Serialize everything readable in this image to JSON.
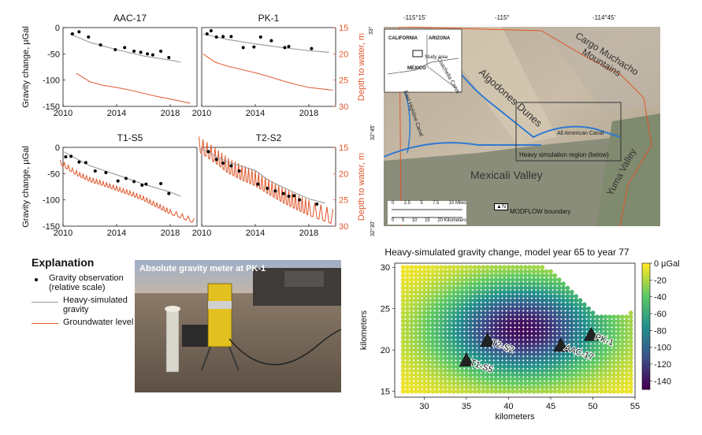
{
  "series_chart": {
    "panels": [
      {
        "title": "AAC-17",
        "x_ticks": [
          "2010",
          "2014",
          "2018"
        ],
        "y_ticks": [
          "0",
          "-50",
          "-100",
          "-150"
        ],
        "y2_ticks": [
          "15",
          "20",
          "25",
          "30"
        ],
        "obs": [
          [
            2010.7,
            -12
          ],
          [
            2011.2,
            -8
          ],
          [
            2011.9,
            -18
          ],
          [
            2012.8,
            -33
          ],
          [
            2013.9,
            -42
          ],
          [
            2014.6,
            -38
          ],
          [
            2015.3,
            -45
          ],
          [
            2015.8,
            -47
          ],
          [
            2016.3,
            -50
          ],
          [
            2016.7,
            -52
          ],
          [
            2017.3,
            -45
          ],
          [
            2017.9,
            -57
          ]
        ],
        "sim": [
          [
            2010.5,
            -12
          ],
          [
            2012,
            -28
          ],
          [
            2014,
            -42
          ],
          [
            2016,
            -54
          ],
          [
            2018,
            -62
          ],
          [
            2018.8,
            -66
          ]
        ],
        "gw": [
          [
            2011,
            23.7
          ],
          [
            2012,
            25.3
          ],
          [
            2013,
            26.0
          ],
          [
            2014,
            26.4
          ],
          [
            2015,
            26.9
          ],
          [
            2016,
            27.5
          ],
          [
            2017,
            28.1
          ],
          [
            2018,
            28.6
          ],
          [
            2019.5,
            29.4
          ]
        ]
      },
      {
        "title": "PK-1",
        "x_ticks": [
          "2010",
          "2014",
          "2018"
        ],
        "y_ticks": [
          "0",
          "-50",
          "-100",
          "-150"
        ],
        "y2_ticks": [
          "15",
          "20",
          "25",
          "30"
        ],
        "obs": [
          [
            2010.4,
            -12
          ],
          [
            2010.7,
            -6
          ],
          [
            2011.1,
            -18
          ],
          [
            2011.6,
            -17
          ],
          [
            2012.2,
            -17
          ],
          [
            2013.1,
            -38
          ],
          [
            2013.9,
            -37
          ],
          [
            2014.4,
            -18
          ],
          [
            2015.2,
            -25
          ],
          [
            2016.2,
            -38
          ],
          [
            2016.5,
            -36
          ],
          [
            2018.2,
            -40
          ]
        ],
        "sim": [
          [
            2010.1,
            -12
          ],
          [
            2012,
            -23
          ],
          [
            2014,
            -31
          ],
          [
            2016,
            -38
          ],
          [
            2018,
            -44
          ],
          [
            2019.5,
            -47
          ]
        ],
        "gw": [
          [
            2010.1,
            20.0
          ],
          [
            2011,
            21.6
          ],
          [
            2012,
            22.4
          ],
          [
            2013,
            23.0
          ],
          [
            2014,
            23.6
          ],
          [
            2015,
            24.3
          ],
          [
            2016,
            25.1
          ],
          [
            2017,
            25.8
          ],
          [
            2018,
            26.4
          ],
          [
            2019.8,
            26.9
          ]
        ]
      },
      {
        "title": "T1-S5",
        "x_ticks": [
          "2010",
          "2014",
          "2018"
        ],
        "y_ticks": [
          "0",
          "-50",
          "-100",
          "-150"
        ],
        "y2_ticks": [
          "15",
          "20",
          "25",
          "30"
        ],
        "obs": [
          [
            2010.2,
            -18
          ],
          [
            2010.6,
            -17
          ],
          [
            2011.2,
            -28
          ],
          [
            2011.7,
            -29
          ],
          [
            2012.4,
            -45
          ],
          [
            2013.2,
            -48
          ],
          [
            2014.1,
            -64
          ],
          [
            2014.7,
            -59
          ],
          [
            2015.3,
            -65
          ],
          [
            2015.9,
            -72
          ],
          [
            2016.2,
            -70
          ],
          [
            2017.3,
            -69
          ],
          [
            2017.9,
            -88
          ]
        ],
        "sim": [
          [
            2010,
            -8
          ],
          [
            2012,
            -35
          ],
          [
            2014,
            -52
          ],
          [
            2016,
            -70
          ],
          [
            2018,
            -85
          ],
          [
            2018.8,
            -93
          ]
        ],
        "gw": [
          [
            2009.8,
            18.2
          ],
          [
            2011,
            20.2
          ],
          [
            2012,
            21.4
          ],
          [
            2013,
            22.2
          ],
          [
            2014,
            23.1
          ],
          [
            2015,
            24.0
          ],
          [
            2016,
            25.0
          ],
          [
            2017,
            26.3
          ],
          [
            2018,
            27.6
          ],
          [
            2019.8,
            29.3
          ]
        ]
      },
      {
        "title": "T2-S2",
        "x_ticks": [
          "2010",
          "2014",
          "2018"
        ],
        "y_ticks": [
          "0",
          "-50",
          "-100",
          "-150"
        ],
        "y2_ticks": [
          "15",
          "20",
          "25",
          "30"
        ],
        "obs": [
          [
            2010.5,
            -8
          ],
          [
            2011.1,
            -23
          ],
          [
            2011.6,
            -30
          ],
          [
            2012.2,
            -35
          ],
          [
            2012.8,
            -45
          ],
          [
            2014.2,
            -70
          ],
          [
            2014.9,
            -78
          ],
          [
            2015.5,
            -83
          ],
          [
            2016.1,
            -88
          ],
          [
            2016.5,
            -93
          ],
          [
            2016.9,
            -92
          ],
          [
            2017.3,
            -100
          ],
          [
            2018.6,
            -108
          ]
        ],
        "sim": [
          [
            2010,
            -2
          ],
          [
            2011,
            -17
          ],
          [
            2012,
            -28
          ],
          [
            2013,
            -36
          ],
          [
            2014,
            -44
          ],
          [
            2015,
            -63
          ],
          [
            2016,
            -75
          ],
          [
            2017,
            -87
          ],
          [
            2018,
            -98
          ],
          [
            2019.2,
            -106
          ]
        ],
        "gw": [
          [
            2009.8,
            15.5
          ],
          [
            2011,
            17.6
          ],
          [
            2012,
            19.6
          ],
          [
            2013,
            20.9
          ],
          [
            2014,
            22.0
          ],
          [
            2015,
            23.6
          ],
          [
            2016,
            25.1
          ],
          [
            2017,
            26.4
          ],
          [
            2018,
            27.6
          ],
          [
            2019.8,
            29.3
          ]
        ]
      }
    ],
    "y_label_left": "Gravity change, µGal",
    "y_label_right": "Depth to water, m",
    "x_range": [
      2010,
      2020
    ],
    "y_range": [
      -150,
      0
    ],
    "y2_range": [
      15,
      30
    ]
  },
  "explanation": {
    "title": "Explanation",
    "items": [
      {
        "label": "Gravity observation (relative scale)",
        "symbol": "dot"
      },
      {
        "label": "Heavy-simulated gravity",
        "symbol": "gray-line"
      },
      {
        "label": "Groundwater level",
        "symbol": "orange-line"
      }
    ]
  },
  "photo": {
    "caption": "Absolute gravity meter at PK-1"
  },
  "map": {
    "lon_ticks": [
      "-115°15'",
      "-115°",
      "-114°45'"
    ],
    "lat_ticks": [
      "33°",
      "32°45'",
      "32°30'"
    ],
    "labels": [
      "Algodones Dunes",
      "Cargo Muchacho Mountains",
      "Mexicali Valley",
      "Yuma Valley",
      "Coachella Canal",
      "East Highline Canal",
      "All American Canal",
      "Heavy simulation region (below)",
      "MODFLOW boundary"
    ],
    "inset": {
      "labels": [
        "CALIFORNIA",
        "ARIZONA",
        "Study area",
        "MEXICO"
      ]
    },
    "scale_miles": [
      "0",
      "2.5",
      "5",
      "7.5",
      "10 Miles"
    ],
    "scale_km": [
      "0",
      "5",
      "10",
      "15",
      "20 Kilometers"
    ],
    "north": "N"
  },
  "chart_data": {
    "type": "scatter",
    "title": "Heavy-simulated gravity change, model year 65 to year 77",
    "xlabel": "kilometers",
    "ylabel": "kilometers",
    "xlim": [
      26.5,
      55
    ],
    "ylim": [
      14.3,
      30.5
    ],
    "x_ticks": [
      "30",
      "35",
      "40",
      "45",
      "50",
      "55"
    ],
    "y_ticks": [
      "15",
      "20",
      "25",
      "30"
    ],
    "colorbar": {
      "label": "0 µGal",
      "ticks": [
        "0 µGal",
        "-20",
        "-40",
        "-60",
        "-80",
        "-100",
        "-120",
        "-140"
      ],
      "range": [
        -150,
        0
      ]
    },
    "stations": [
      {
        "name": "T1-S5",
        "x": 35,
        "y": 18.8
      },
      {
        "name": "T2-S2",
        "x": 37.5,
        "y": 21.2
      },
      {
        "name": "AAC-17",
        "x": 46.2,
        "y": 20.6
      },
      {
        "name": "PK-1",
        "x": 49.8,
        "y": 21.9
      }
    ],
    "grid": {
      "x_start": 27.5,
      "x_end": 54.5,
      "y_start": 15,
      "spacing": 0.5,
      "top_edge": [
        [
          27.5,
          30
        ],
        [
          44,
          30
        ],
        [
          45,
          29.5
        ],
        [
          46,
          28.5
        ],
        [
          47,
          27.5
        ],
        [
          48,
          26.5
        ],
        [
          49,
          25.5
        ],
        [
          50,
          24.5
        ],
        [
          51,
          24
        ],
        [
          54,
          24
        ],
        [
          54.5,
          24.5
        ]
      ]
    },
    "field": {
      "min_center": [
        41.5,
        22.5
      ],
      "min_value": -145
    }
  }
}
